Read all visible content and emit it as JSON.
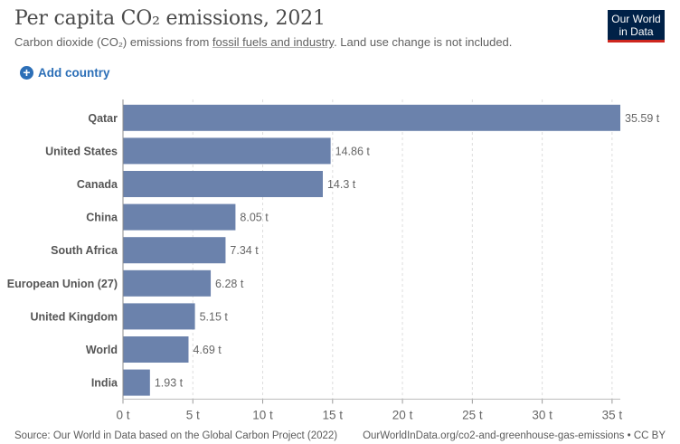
{
  "header": {
    "title": "Per capita CO₂ emissions, 2021",
    "subtitle_pre": "Carbon dioxide (CO₂) emissions from ",
    "subtitle_link": "fossil fuels and industry",
    "subtitle_post": ". Land use change is not included."
  },
  "logo": {
    "line1": "Our World",
    "line2": "in Data"
  },
  "controls": {
    "add_country": "Add country",
    "add_icon": "plus-circle-icon"
  },
  "colors": {
    "bar": "#6b82ac",
    "accent": "#2c6fb7",
    "logo_bg": "#002147",
    "logo_stripe": "#ce261e"
  },
  "chart_data": {
    "type": "bar",
    "orientation": "horizontal",
    "categories": [
      "Qatar",
      "United States",
      "Canada",
      "China",
      "South Africa",
      "European Union (27)",
      "United Kingdom",
      "World",
      "India"
    ],
    "values": [
      35.59,
      14.86,
      14.3,
      8.05,
      7.34,
      6.28,
      5.15,
      4.69,
      1.93
    ],
    "value_labels": [
      "35.59 t",
      "14.86 t",
      "14.3 t",
      "8.05 t",
      "7.34 t",
      "6.28 t",
      "5.15 t",
      "4.69 t",
      "1.93 t"
    ],
    "x_ticks": [
      0,
      5,
      10,
      15,
      20,
      25,
      30,
      35
    ],
    "x_tick_labels": [
      "0 t",
      "5 t",
      "10 t",
      "15 t",
      "20 t",
      "25 t",
      "30 t",
      "35 t"
    ],
    "xlim": [
      0,
      35.59
    ],
    "grid": true
  },
  "footer": {
    "source": "Source: Our World in Data based on the Global Carbon Project (2022)",
    "url": "OurWorldInData.org/co2-and-greenhouse-gas-emissions • CC BY"
  }
}
